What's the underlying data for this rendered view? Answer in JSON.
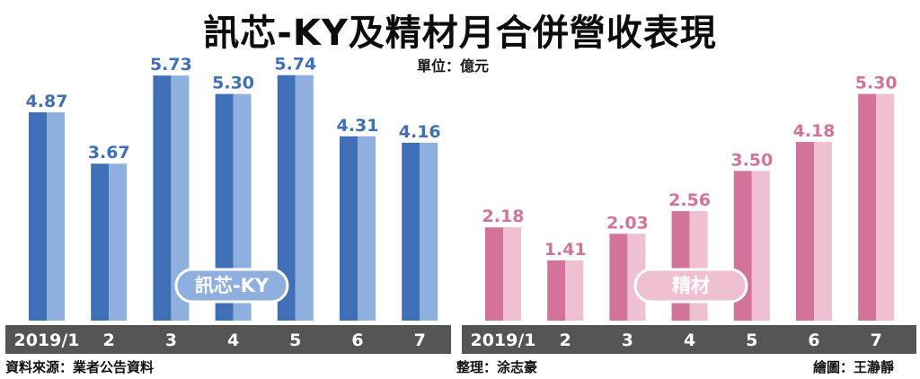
{
  "title": "訊芯-KY及精材月合併營收表現",
  "unit_label": "單位：億元",
  "source": "資料來源：業者公告資料",
  "editor": "整理：涂志豪",
  "illustrator": "繪圖：王瀞靜",
  "colors": {
    "blue_dark": "#3f6fb7",
    "blue_light": "#8fb0df",
    "pink_dark": "#d3739a",
    "pink_light": "#efbfd2",
    "axis_band": "#555555"
  },
  "chart_data": [
    {
      "type": "bar",
      "series": [
        {
          "name": "訊芯-KY",
          "values": [
            4.87,
            3.67,
            5.73,
            5.3,
            5.74,
            4.31,
            4.16
          ]
        }
      ],
      "categories": [
        "2019/1",
        "2",
        "3",
        "4",
        "5",
        "6",
        "7"
      ],
      "value_labels": [
        "4.87",
        "3.67",
        "5.73",
        "5.30",
        "5.74",
        "4.31",
        "4.16"
      ],
      "ylim": [
        0,
        6.3
      ],
      "grid": false,
      "legend": "bottom-center"
    },
    {
      "type": "bar",
      "series": [
        {
          "name": "精材",
          "values": [
            2.18,
            1.41,
            2.03,
            2.56,
            3.5,
            4.18,
            5.3
          ]
        }
      ],
      "categories": [
        "2019/1",
        "2",
        "3",
        "4",
        "5",
        "6",
        "7"
      ],
      "value_labels": [
        "2.18",
        "1.41",
        "2.03",
        "2.56",
        "3.50",
        "4.18",
        "5.30"
      ],
      "ylim": [
        0,
        6.3
      ],
      "grid": false,
      "legend": "bottom-center"
    }
  ]
}
